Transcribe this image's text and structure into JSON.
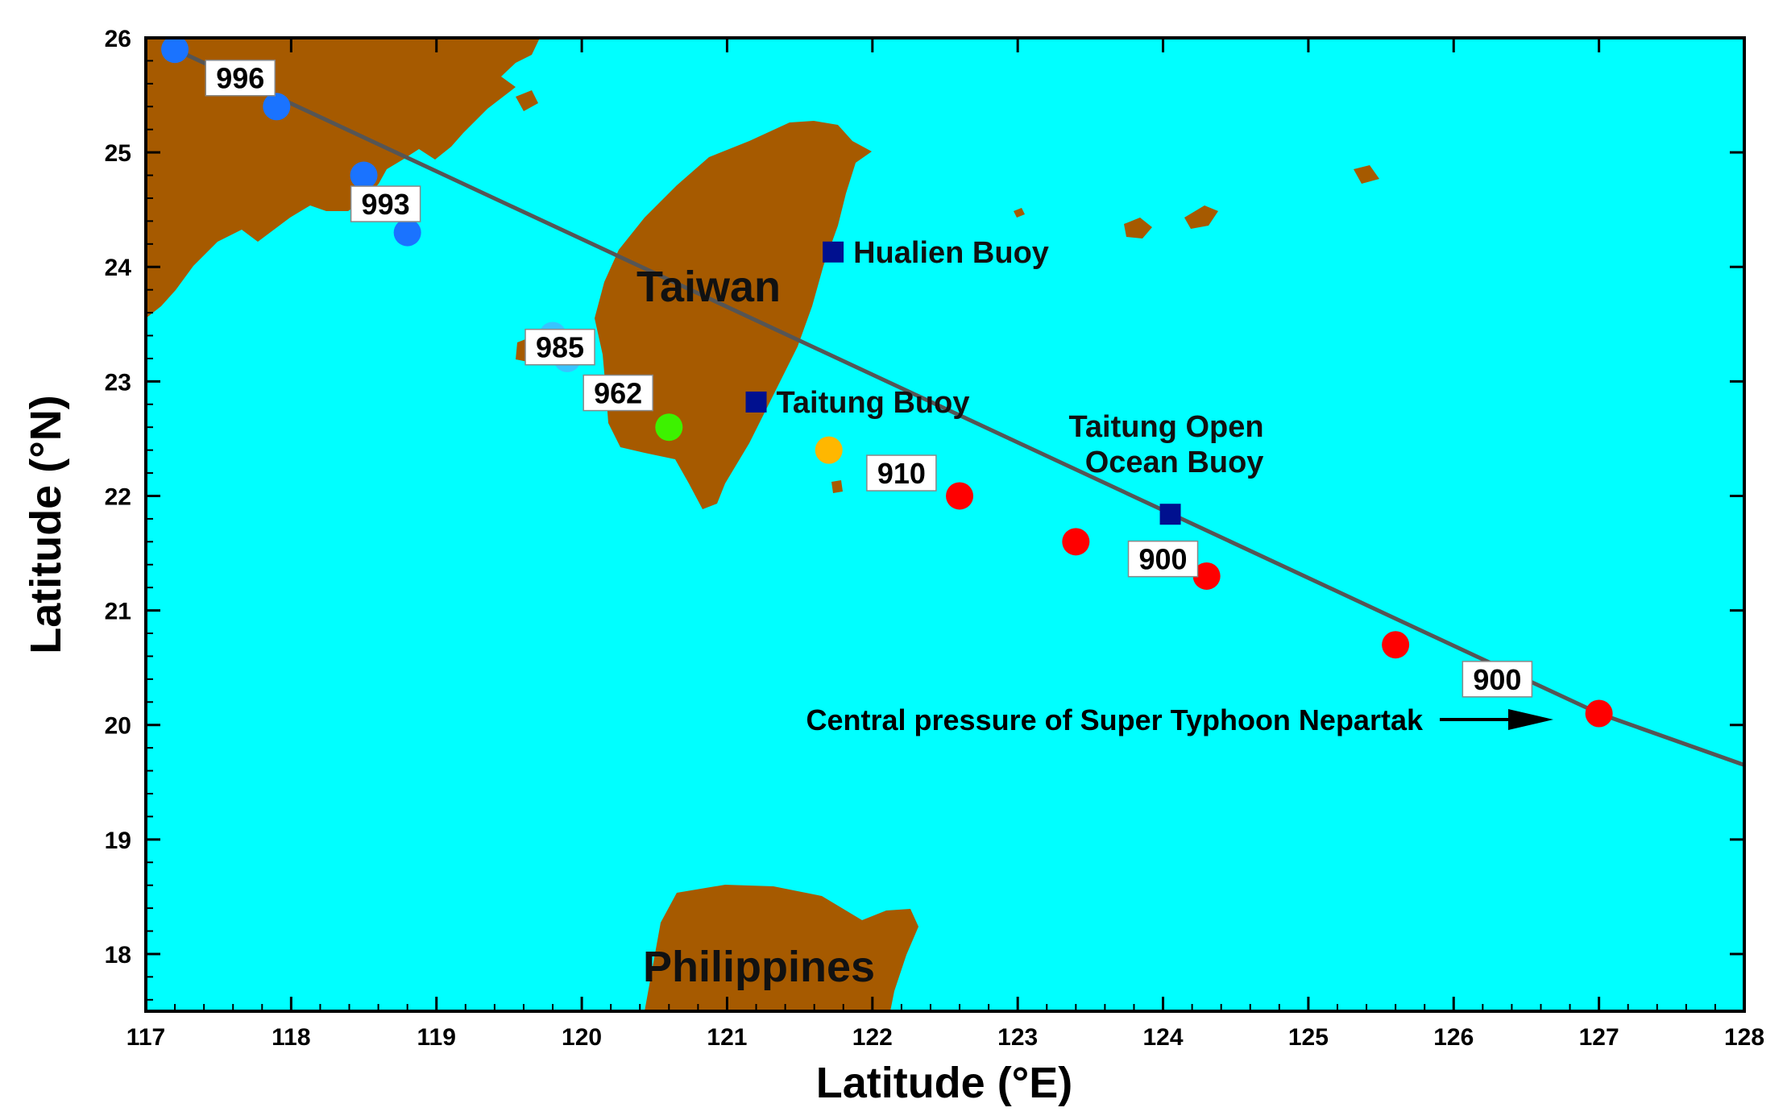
{
  "chart_data": {
    "type": "scatter",
    "xlabel": "Latitude (°E)",
    "ylabel": "Latitude (°N)",
    "xlim": [
      117,
      128
    ],
    "ylim": [
      17.5,
      26
    ],
    "x_ticks": [
      117,
      118,
      119,
      120,
      121,
      122,
      123,
      124,
      125,
      126,
      127,
      128
    ],
    "y_ticks": [
      18,
      19,
      20,
      21,
      22,
      23,
      24,
      25,
      26
    ],
    "grid": false,
    "colors": {
      "ocean": "#00ffff",
      "land": "#a65a00",
      "track": "#555555",
      "buoy": "#00108f"
    },
    "track_line": [
      [
        117.2,
        25.9
      ],
      [
        127.0,
        20.1
      ],
      [
        128.0,
        19.65
      ]
    ],
    "track_points": [
      {
        "x": 117.2,
        "y": 25.9,
        "color": "#1a73ff"
      },
      {
        "x": 117.9,
        "y": 25.4,
        "color": "#1a73ff"
      },
      {
        "x": 118.5,
        "y": 24.8,
        "color": "#1a73ff"
      },
      {
        "x": 118.8,
        "y": 24.3,
        "color": "#1a73ff"
      },
      {
        "x": 119.8,
        "y": 23.4,
        "color": "#38c4ff"
      },
      {
        "x": 119.9,
        "y": 23.2,
        "color": "#38c4ff"
      },
      {
        "x": 120.6,
        "y": 22.6,
        "color": "#3df200"
      },
      {
        "x": 121.7,
        "y": 22.4,
        "color": "#ffb700"
      },
      {
        "x": 122.6,
        "y": 22.0,
        "color": "#ff0000"
      },
      {
        "x": 123.4,
        "y": 21.6,
        "color": "#ff0000"
      },
      {
        "x": 124.3,
        "y": 21.3,
        "color": "#ff0000"
      },
      {
        "x": 125.6,
        "y": 20.7,
        "color": "#ff0000"
      },
      {
        "x": 127.0,
        "y": 20.1,
        "color": "#ff0000"
      }
    ],
    "pressure_labels": [
      {
        "text": "996",
        "x": 117.65,
        "y": 25.65
      },
      {
        "text": "993",
        "x": 118.65,
        "y": 24.55
      },
      {
        "text": "985",
        "x": 119.85,
        "y": 23.3
      },
      {
        "text": "962",
        "x": 120.25,
        "y": 22.9
      },
      {
        "text": "910",
        "x": 122.2,
        "y": 22.2
      },
      {
        "text": "900",
        "x": 124.0,
        "y": 21.45
      },
      {
        "text": "900",
        "x": 126.3,
        "y": 20.4
      }
    ],
    "buoys": [
      {
        "name": "Hualien Buoy",
        "x": 121.73,
        "y": 24.13
      },
      {
        "name": "Taitung Buoy",
        "x": 121.2,
        "y": 22.82
      },
      {
        "name": "Taitung Open Ocean Buoy",
        "x": 124.05,
        "y": 21.84
      }
    ],
    "regions": [
      "Taiwan",
      "Philippines"
    ],
    "annotation": {
      "text": "Central pressure of Super Typhoon Nepartak"
    }
  }
}
